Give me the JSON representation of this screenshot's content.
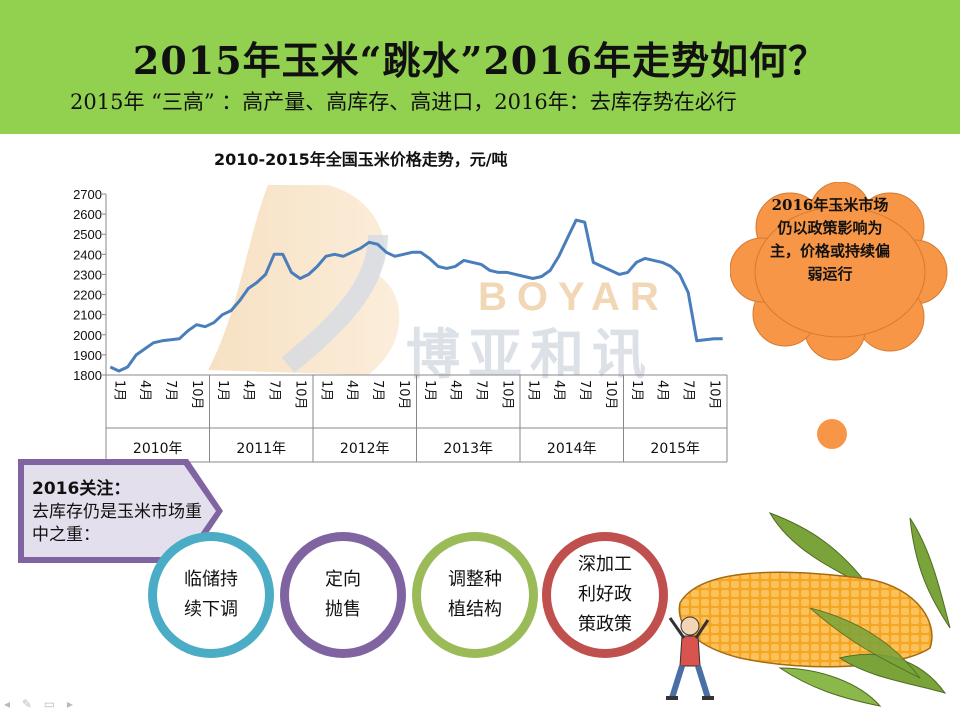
{
  "title": "2015年玉米“跳水”2016年走势如何？",
  "subtitle": "2015年 “三高” ：高产量、高库存、高进口，2016年：去库存势在必行",
  "watermark": {
    "latin": "BOYAR",
    "chinese": "博亚和讯"
  },
  "callout": {
    "text": "2016年玉米市场仍以政策影响为主，价格或持续偏弱运行"
  },
  "focus": {
    "label": "2016关注：",
    "text": "去库存仍是玉米市场重中之重："
  },
  "steps": [
    {
      "label": "临储持\n续下调",
      "color": "#4bacc6"
    },
    {
      "label": "定向\n抛售",
      "color": "#8064a2"
    },
    {
      "label": "调整种\n植结构",
      "color": "#9bbb59"
    },
    {
      "label": "深加工\n利好政\n策政策",
      "color": "#c0504d"
    }
  ],
  "chart_data": {
    "type": "line",
    "title": "2010-2015年全国玉米价格走势，元/吨",
    "ylim": [
      1800,
      2700
    ],
    "yticks": [
      "2700",
      "2600",
      "2500",
      "2400",
      "2300",
      "2200",
      "2100",
      "2000",
      "1900",
      "1800"
    ],
    "month_labels": [
      "1月",
      "4月",
      "7月",
      "10月"
    ],
    "years": [
      "2010年",
      "2011年",
      "2012年",
      "2013年",
      "2014年",
      "2015年"
    ],
    "series": [
      {
        "color": "#4a7ebb",
        "values": [
          1840,
          1820,
          1840,
          1900,
          1930,
          1960,
          1970,
          1975,
          1980,
          2020,
          2050,
          2040,
          2060,
          2100,
          2120,
          2170,
          2230,
          2260,
          2300,
          2400,
          2400,
          2310,
          2280,
          2300,
          2340,
          2390,
          2400,
          2390,
          2410,
          2430,
          2460,
          2450,
          2410,
          2390,
          2400,
          2410,
          2410,
          2380,
          2340,
          2330,
          2340,
          2370,
          2360,
          2350,
          2320,
          2310,
          2310,
          2300,
          2290,
          2280,
          2290,
          2320,
          2390,
          2480,
          2570,
          2560,
          2360,
          2340,
          2320,
          2300,
          2310,
          2360,
          2380,
          2370,
          2360,
          2340,
          2300,
          2210,
          1970,
          1975,
          1980,
          1980
        ]
      }
    ]
  }
}
